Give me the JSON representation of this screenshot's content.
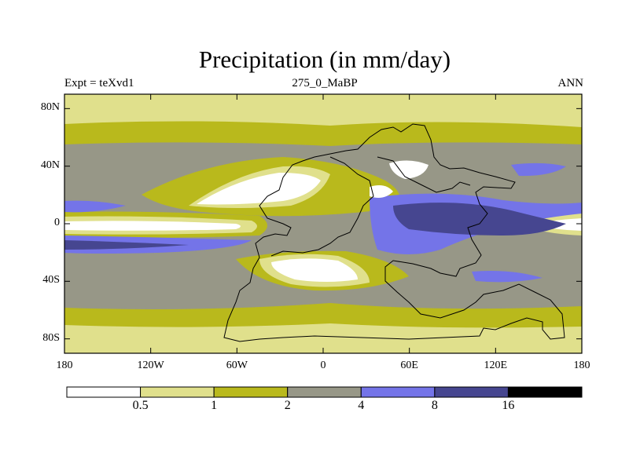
{
  "chart_data": {
    "type": "heatmap",
    "title": "Precipitation (in mm/day)",
    "left_label": "Expt = teXvd1",
    "center_label": "275_0_MaBP",
    "right_label": "ANN",
    "projection": "cylindrical-equidistant",
    "xlim": [
      -180,
      180
    ],
    "ylim": [
      -90,
      90
    ],
    "x_ticks": [
      {
        "value": -180,
        "label": "180"
      },
      {
        "value": -120,
        "label": "120W"
      },
      {
        "value": -60,
        "label": "60W"
      },
      {
        "value": 0,
        "label": "0"
      },
      {
        "value": 60,
        "label": "60E"
      },
      {
        "value": 120,
        "label": "120E"
      },
      {
        "value": 180,
        "label": "180"
      }
    ],
    "y_ticks": [
      {
        "value": 80,
        "label": "80N"
      },
      {
        "value": 40,
        "label": "40N"
      },
      {
        "value": 0,
        "label": "0"
      },
      {
        "value": -40,
        "label": "40S"
      },
      {
        "value": -80,
        "label": "80S"
      }
    ],
    "colorbar": {
      "levels": [
        0.5,
        1,
        2,
        4,
        8,
        16
      ],
      "level_labels": [
        "0.5",
        "1",
        "2",
        "4",
        "8",
        "16"
      ],
      "colors": [
        "#ffffff",
        "#e0e08c",
        "#b9b91c",
        "#979787",
        "#7474e8",
        "#464690",
        "#000000"
      ],
      "bin_ranges": [
        "<0.5",
        "0.5-1",
        "1-2",
        "2-4",
        "4-8",
        "8-16",
        ">16"
      ]
    }
  }
}
